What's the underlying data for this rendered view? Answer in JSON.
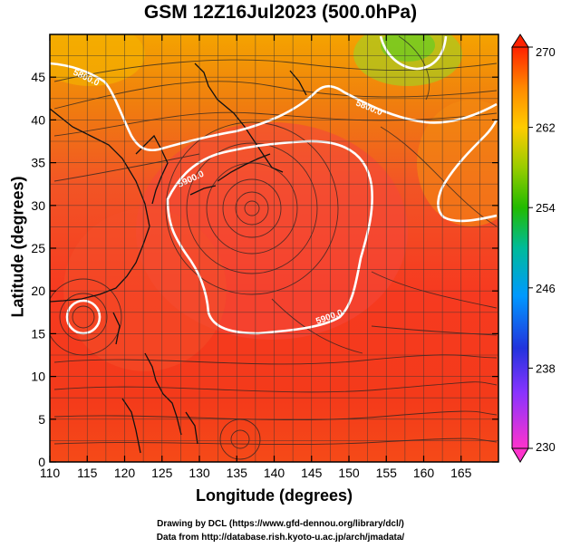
{
  "chart_data": {
    "type": "heatmap",
    "title": "GSM 12Z16Jul2023 (500.0hPa)",
    "xlabel": "Longitude (degrees)",
    "ylabel": "Latitude  (degrees)",
    "xlim": [
      110,
      170
    ],
    "ylim": [
      0,
      50
    ],
    "x_ticks": [
      110,
      115,
      120,
      125,
      130,
      135,
      140,
      145,
      150,
      155,
      160,
      165
    ],
    "y_ticks": [
      0,
      5,
      10,
      15,
      20,
      25,
      30,
      35,
      40,
      45
    ],
    "grid": true,
    "colorbar": {
      "position": "right",
      "min": 230,
      "max": 270,
      "ticks": [
        230,
        238,
        246,
        254,
        262,
        270
      ],
      "colors": [
        "#ff33cc",
        "#3333ff",
        "#00aaff",
        "#00cc66",
        "#33cc00",
        "#ffcc00",
        "#ff8800",
        "#ff2200"
      ]
    },
    "contour_labels": [
      "5800.0",
      "5800.0",
      "5900.0",
      "5900.0"
    ],
    "overlays": [
      "streamlines",
      "coastlines",
      "5800 m geopotential height contour",
      "5900 m geopotential height contour"
    ]
  },
  "credits": {
    "line1": "Drawing by DCL (https://www.gfd-dennou.org/library/dcl/)",
    "line2": "Data from http://database.rish.kyoto-u.ac.jp/arch/jmadata/"
  }
}
